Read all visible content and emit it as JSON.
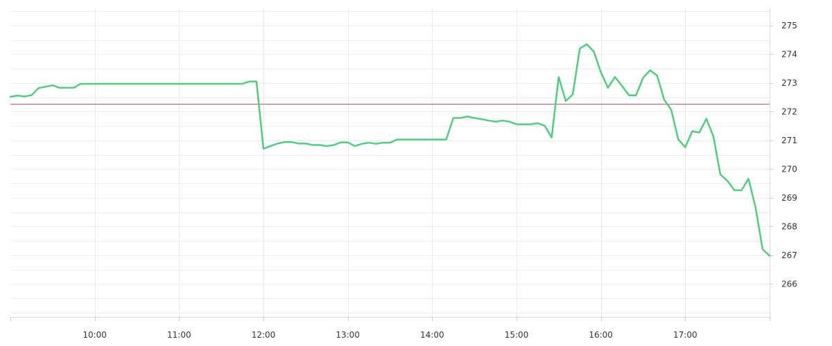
{
  "chart_data": {
    "type": "line",
    "title": "",
    "xlabel": "",
    "ylabel": "",
    "x_tick_labels": [
      "10:00",
      "11:00",
      "12:00",
      "13:00",
      "14:00",
      "15:00",
      "16:00",
      "17:00"
    ],
    "y_tick_labels": [
      "266",
      "267",
      "268",
      "269",
      "270",
      "271",
      "272",
      "273",
      "274",
      "275"
    ],
    "xlim": [
      "09:00",
      "18:00"
    ],
    "ylim": [
      264.85,
      275.6
    ],
    "grid": true,
    "y_axis_position": "right",
    "reference_line": {
      "value": 272.27,
      "color": "#e05252"
    },
    "series": [
      {
        "color": "#4cd07d",
        "points": [
          [
            "09:00",
            272.52
          ],
          [
            "09:05",
            272.56
          ],
          [
            "09:10",
            272.53
          ],
          [
            "09:15",
            272.57
          ],
          [
            "09:20",
            272.82
          ],
          [
            "09:25",
            272.87
          ],
          [
            "09:30",
            272.92
          ],
          [
            "09:35",
            272.83
          ],
          [
            "09:40",
            272.83
          ],
          [
            "09:45",
            272.83
          ],
          [
            "09:50",
            272.97
          ],
          [
            "09:55",
            272.97
          ],
          [
            "10:00",
            272.97
          ],
          [
            "10:30",
            272.97
          ],
          [
            "11:00",
            272.97
          ],
          [
            "11:30",
            272.97
          ],
          [
            "11:45",
            272.97
          ],
          [
            "11:50",
            273.05
          ],
          [
            "11:55",
            273.05
          ],
          [
            "12:00",
            270.71
          ],
          [
            "12:05",
            270.8
          ],
          [
            "12:10",
            270.89
          ],
          [
            "12:15",
            270.94
          ],
          [
            "12:20",
            270.94
          ],
          [
            "12:25",
            270.89
          ],
          [
            "12:30",
            270.89
          ],
          [
            "12:35",
            270.84
          ],
          [
            "12:40",
            270.84
          ],
          [
            "12:45",
            270.8
          ],
          [
            "12:50",
            270.84
          ],
          [
            "12:55",
            270.93
          ],
          [
            "13:00",
            270.93
          ],
          [
            "13:05",
            270.8
          ],
          [
            "13:10",
            270.88
          ],
          [
            "13:15",
            270.92
          ],
          [
            "13:20",
            270.88
          ],
          [
            "13:25",
            270.92
          ],
          [
            "13:30",
            270.92
          ],
          [
            "13:35",
            271.03
          ],
          [
            "13:40",
            271.03
          ],
          [
            "13:45",
            271.03
          ],
          [
            "13:50",
            271.03
          ],
          [
            "13:55",
            271.03
          ],
          [
            "14:00",
            271.03
          ],
          [
            "14:05",
            271.03
          ],
          [
            "14:10",
            271.03
          ],
          [
            "14:15",
            271.78
          ],
          [
            "14:20",
            271.78
          ],
          [
            "14:25",
            271.83
          ],
          [
            "14:30",
            271.78
          ],
          [
            "14:35",
            271.74
          ],
          [
            "14:40",
            271.69
          ],
          [
            "14:45",
            271.65
          ],
          [
            "14:50",
            271.69
          ],
          [
            "14:55",
            271.65
          ],
          [
            "15:00",
            271.56
          ],
          [
            "15:05",
            271.56
          ],
          [
            "15:10",
            271.56
          ],
          [
            "15:15",
            271.6
          ],
          [
            "15:20",
            271.51
          ],
          [
            "15:25",
            271.1
          ],
          [
            "15:30",
            273.21
          ],
          [
            "15:35",
            272.37
          ],
          [
            "15:40",
            272.6
          ],
          [
            "15:45",
            274.2
          ],
          [
            "15:50",
            274.35
          ],
          [
            "15:55",
            274.09
          ],
          [
            "16:00",
            273.37
          ],
          [
            "16:05",
            272.83
          ],
          [
            "16:10",
            273.21
          ],
          [
            "16:15",
            272.9
          ],
          [
            "16:20",
            272.57
          ],
          [
            "16:25",
            272.57
          ],
          [
            "16:30",
            273.18
          ],
          [
            "16:35",
            273.44
          ],
          [
            "16:40",
            273.26
          ],
          [
            "16:45",
            272.42
          ],
          [
            "16:50",
            272.07
          ],
          [
            "16:55",
            271.04
          ],
          [
            "17:00",
            270.76
          ],
          [
            "17:05",
            271.32
          ],
          [
            "17:10",
            271.27
          ],
          [
            "17:15",
            271.75
          ],
          [
            "17:20",
            271.14
          ],
          [
            "17:25",
            269.81
          ],
          [
            "17:30",
            269.59
          ],
          [
            "17:35",
            269.26
          ],
          [
            "17:40",
            269.26
          ],
          [
            "17:45",
            269.66
          ],
          [
            "17:50",
            268.67
          ],
          [
            "17:55",
            267.21
          ],
          [
            "18:00",
            266.98
          ]
        ]
      }
    ]
  }
}
